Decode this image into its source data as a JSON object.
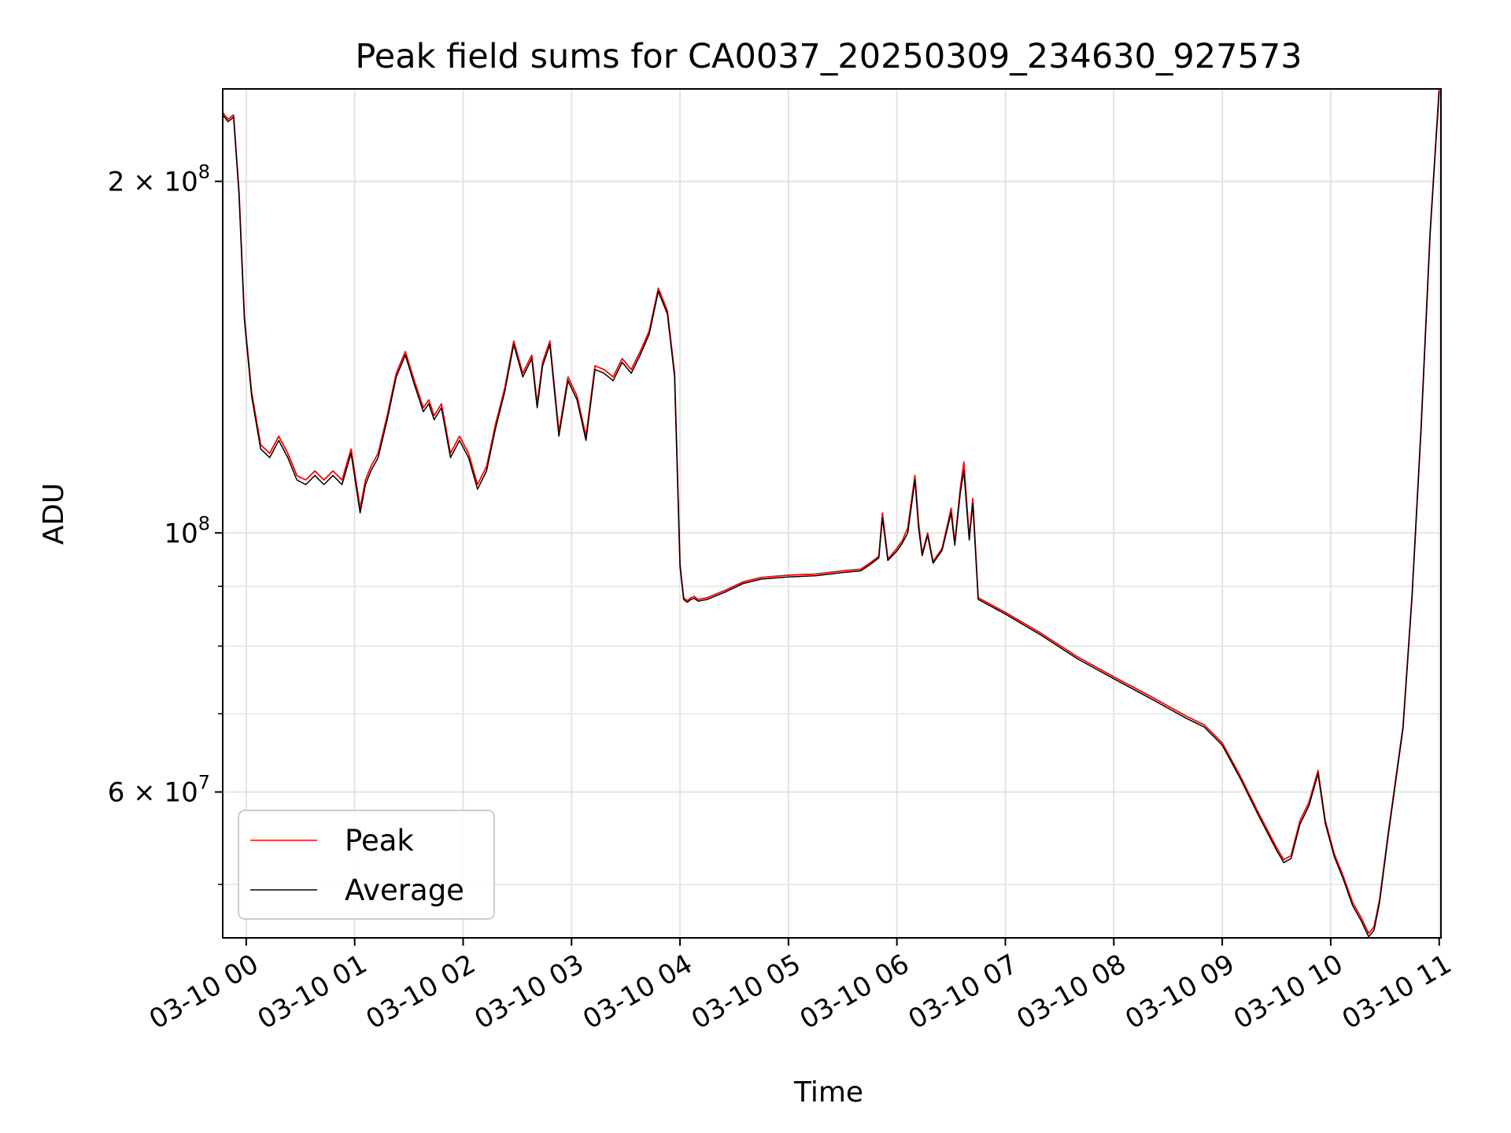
{
  "chart_data": {
    "type": "line",
    "title": "Peak field sums for CA0037_20250309_234630_927573",
    "xlabel": "Time",
    "ylabel": "ADU",
    "y_scale": "log",
    "ylim": [
      45000000,
      240000000
    ],
    "xlim": [
      "03-09 23:47",
      "03-10 11:01"
    ],
    "grid": true,
    "legend_position": "lower-left",
    "x_tick_labels": [
      "03-10 00",
      "03-10 01",
      "03-10 02",
      "03-10 03",
      "03-10 04",
      "03-10 05",
      "03-10 06",
      "03-10 07",
      "03-10 08",
      "03-10 09",
      "03-10 10",
      "03-10 11"
    ],
    "y_tick_labels": [
      {
        "value": 200000000,
        "base": "2 × 10",
        "exp": "8"
      },
      {
        "value": 100000000,
        "base": "10",
        "exp": "8"
      },
      {
        "value": 60000000,
        "base": "6 × 10",
        "exp": "7"
      }
    ],
    "x": [
      "03-09 23:47",
      "03-09 23:50",
      "03-09 23:53",
      "03-09 23:56",
      "03-09 23:59",
      "03-10 00:03",
      "03-10 00:08",
      "03-10 00:13",
      "03-10 00:18",
      "03-10 00:23",
      "03-10 00:28",
      "03-10 00:33",
      "03-10 00:38",
      "03-10 00:43",
      "03-10 00:48",
      "03-10 00:53",
      "03-10 00:58",
      "03-10 01:03",
      "03-10 01:06",
      "03-10 01:09",
      "03-10 01:13",
      "03-10 01:18",
      "03-10 01:23",
      "03-10 01:28",
      "03-10 01:33",
      "03-10 01:38",
      "03-10 01:41",
      "03-10 01:44",
      "03-10 01:48",
      "03-10 01:53",
      "03-10 01:58",
      "03-10 02:03",
      "03-10 02:08",
      "03-10 02:13",
      "03-10 02:18",
      "03-10 02:23",
      "03-10 02:28",
      "03-10 02:33",
      "03-10 02:38",
      "03-10 02:41",
      "03-10 02:44",
      "03-10 02:48",
      "03-10 02:53",
      "03-10 02:58",
      "03-10 03:03",
      "03-10 03:08",
      "03-10 03:13",
      "03-10 03:18",
      "03-10 03:23",
      "03-10 03:28",
      "03-10 03:33",
      "03-10 03:38",
      "03-10 03:43",
      "03-10 03:48",
      "03-10 03:53",
      "03-10 03:57",
      "03-10 04:00",
      "03-10 04:02",
      "03-10 04:04",
      "03-10 04:06",
      "03-10 04:08",
      "03-10 04:10",
      "03-10 04:15",
      "03-10 04:25",
      "03-10 04:35",
      "03-10 04:45",
      "03-10 05:00",
      "03-10 05:15",
      "03-10 05:30",
      "03-10 05:40",
      "03-10 05:45",
      "03-10 05:50",
      "03-10 05:52",
      "03-10 05:55",
      "03-10 06:00",
      "03-10 06:03",
      "03-10 06:06",
      "03-10 06:10",
      "03-10 06:12",
      "03-10 06:14",
      "03-10 06:17",
      "03-10 06:20",
      "03-10 06:25",
      "03-10 06:30",
      "03-10 06:32",
      "03-10 06:35",
      "03-10 06:37",
      "03-10 06:40",
      "03-10 06:42",
      "03-10 06:45",
      "03-10 07:00",
      "03-10 07:20",
      "03-10 07:40",
      "03-10 08:00",
      "03-10 08:20",
      "03-10 08:40",
      "03-10 08:50",
      "03-10 09:00",
      "03-10 09:10",
      "03-10 09:20",
      "03-10 09:30",
      "03-10 09:34",
      "03-10 09:38",
      "03-10 09:43",
      "03-10 09:48",
      "03-10 09:53",
      "03-10 09:57",
      "03-10 10:02",
      "03-10 10:07",
      "03-10 10:12",
      "03-10 10:17",
      "03-10 10:21",
      "03-10 10:24",
      "03-10 10:27",
      "03-10 10:32",
      "03-10 10:40",
      "03-10 10:45",
      "03-10 10:50",
      "03-10 10:55",
      "03-10 11:00"
    ],
    "series": [
      {
        "name": "Peak",
        "color": "#ff0000",
        "values": [
          229000000,
          226000000,
          228000000,
          196000000,
          153000000,
          132000000,
          119000000,
          117000000,
          121000000,
          117000000,
          112000000,
          111000000,
          113000000,
          111000000,
          113000000,
          111000000,
          118000000,
          105000000,
          111000000,
          114000000,
          117000000,
          126000000,
          137000000,
          143000000,
          135000000,
          128000000,
          130000000,
          126000000,
          129000000,
          117000000,
          121000000,
          117000000,
          110000000,
          114000000,
          124000000,
          133000000,
          146000000,
          137000000,
          142000000,
          129000000,
          140000000,
          146000000,
          122000000,
          136000000,
          131000000,
          121000000,
          139000000,
          138000000,
          136000000,
          141000000,
          138000000,
          143000000,
          149000000,
          162000000,
          155000000,
          137000000,
          94000000,
          88000000,
          87500000,
          88000000,
          88200000,
          87700000,
          88000000,
          89300000,
          90800000,
          91600000,
          92000000,
          92200000,
          92800000,
          93100000,
          94200000,
          95500000,
          104000000,
          95000000,
          97000000,
          98500000,
          101000000,
          112000000,
          102000000,
          96000000,
          100000000,
          94500000,
          97000000,
          105000000,
          98000000,
          109000000,
          115000000,
          99000000,
          107000000,
          88000000,
          85500000,
          82000000,
          78300000,
          75300000,
          72500000,
          69700000,
          68500000,
          66100000,
          61900000,
          57600000,
          53800000,
          52500000,
          52900000,
          56700000,
          58800000,
          62600000,
          56700000,
          53100000,
          50800000,
          48300000,
          46800000,
          45400000,
          46000000,
          48500000,
          55600000,
          68300000,
          88500000,
          123000000,
          181000000,
          240000000
        ]
      },
      {
        "name": "Average",
        "color": "#000000",
        "values": [
          228000000,
          225000000,
          227000000,
          195000000,
          152000000,
          131000000,
          118000000,
          116000000,
          120000000,
          116000000,
          111000000,
          110000000,
          112000000,
          110000000,
          112000000,
          110000000,
          117000000,
          104000000,
          110000000,
          113000000,
          116000000,
          125000000,
          136000000,
          142000000,
          134000000,
          127000000,
          129000000,
          125000000,
          128000000,
          116000000,
          120000000,
          116000000,
          109000000,
          113000000,
          123000000,
          132000000,
          145000000,
          136000000,
          141000000,
          128000000,
          139000000,
          145000000,
          121000000,
          135000000,
          130000000,
          120000000,
          138000000,
          137000000,
          135000000,
          140000000,
          137000000,
          142000000,
          148000000,
          161000000,
          154000000,
          136000000,
          93500000,
          87700000,
          87200000,
          87700000,
          87900000,
          87400000,
          87700000,
          89000000,
          90500000,
          91300000,
          91700000,
          91900000,
          92500000,
          92800000,
          93900000,
          95200000,
          103000000,
          94700000,
          96500000,
          98000000,
          100000000,
          111000000,
          101000000,
          95600000,
          99500000,
          94200000,
          96600000,
          104000000,
          97600000,
          108000000,
          113000000,
          98600000,
          106000000,
          87700000,
          85200000,
          81700000,
          78000000,
          75000000,
          72200000,
          69400000,
          68200000,
          65800000,
          61600000,
          57300000,
          53500000,
          52200000,
          52600000,
          56300000,
          58400000,
          62200000,
          56400000,
          52800000,
          50500000,
          48000000,
          46500000,
          45100000,
          45700000,
          48200000,
          55300000,
          68000000,
          88200000,
          122500000,
          180000000,
          239000000
        ]
      }
    ]
  }
}
